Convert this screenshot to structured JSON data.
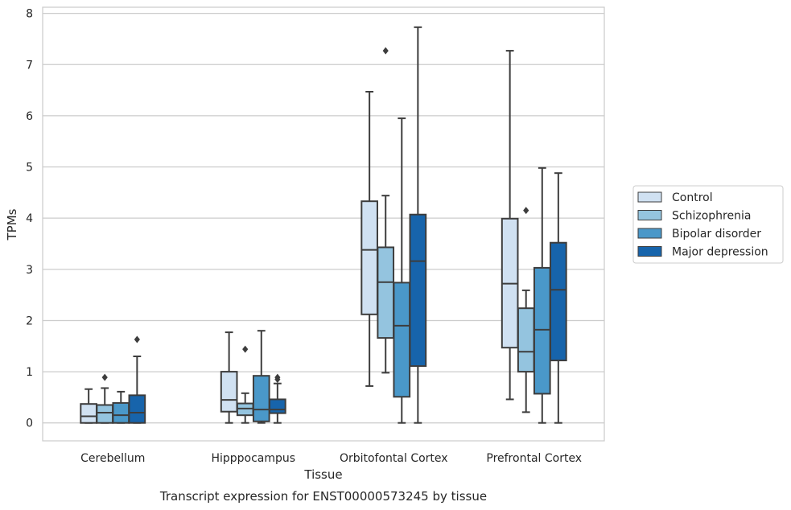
{
  "chart_data": {
    "type": "boxplot",
    "caption": "Transcript expression for ENST00000573245 by tissue",
    "xlabel": "Tissue",
    "ylabel": "TPMs",
    "ylim": [
      -0.35,
      8.12
    ],
    "yticks": [
      0,
      1,
      2,
      3,
      4,
      5,
      6,
      7,
      8
    ],
    "grid": "horizontal",
    "legend_position": "right",
    "categories": [
      "Cerebellum",
      "Hipppocampus",
      "Orbitofontal Cortex",
      "Prefrontal Cortex"
    ],
    "series": [
      {
        "name": "Control",
        "color": "#d0e1f2",
        "boxes": [
          {
            "whislo": 0,
            "q1": 0,
            "med": 0.13,
            "q3": 0.37,
            "whishi": 0.66,
            "fliers": []
          },
          {
            "whislo": 0,
            "q1": 0.22,
            "med": 0.45,
            "q3": 1.0,
            "whishi": 1.77,
            "fliers": []
          },
          {
            "whislo": 0.72,
            "q1": 2.12,
            "med": 3.38,
            "q3": 4.33,
            "whishi": 6.47,
            "fliers": []
          },
          {
            "whislo": 0.46,
            "q1": 1.47,
            "med": 2.72,
            "q3": 3.99,
            "whishi": 7.27,
            "fliers": []
          }
        ]
      },
      {
        "name": "Schizophrenia",
        "color": "#94c4df",
        "boxes": [
          {
            "whislo": 0,
            "q1": 0,
            "med": 0.2,
            "q3": 0.35,
            "whishi": 0.68,
            "fliers": [
              0.89
            ]
          },
          {
            "whislo": 0,
            "q1": 0.15,
            "med": 0.28,
            "q3": 0.38,
            "whishi": 0.58,
            "fliers": [
              1.44
            ]
          },
          {
            "whislo": 0.98,
            "q1": 1.66,
            "med": 2.75,
            "q3": 3.43,
            "whishi": 4.44,
            "fliers": [
              7.27
            ]
          },
          {
            "whislo": 0.21,
            "q1": 1.0,
            "med": 1.39,
            "q3": 2.24,
            "whishi": 2.59,
            "fliers": [
              4.15
            ]
          }
        ]
      },
      {
        "name": "Bipolar disorder",
        "color": "#4a98c9",
        "boxes": [
          {
            "whislo": 0,
            "q1": 0,
            "med": 0.15,
            "q3": 0.39,
            "whishi": 0.61,
            "fliers": []
          },
          {
            "whislo": 0,
            "q1": 0.03,
            "med": 0.26,
            "q3": 0.92,
            "whishi": 1.8,
            "fliers": []
          },
          {
            "whislo": 0,
            "q1": 0.51,
            "med": 1.9,
            "q3": 2.74,
            "whishi": 5.95,
            "fliers": []
          },
          {
            "whislo": 0,
            "q1": 0.57,
            "med": 1.82,
            "q3": 3.03,
            "whishi": 4.98,
            "fliers": []
          }
        ]
      },
      {
        "name": "Major depression",
        "color": "#1764ab",
        "boxes": [
          {
            "whislo": 0,
            "q1": 0,
            "med": 0.2,
            "q3": 0.54,
            "whishi": 1.3,
            "fliers": [
              1.63
            ]
          },
          {
            "whislo": 0,
            "q1": 0.19,
            "med": 0.26,
            "q3": 0.46,
            "whishi": 0.77,
            "fliers": [
              0.85,
              0.89
            ]
          },
          {
            "whislo": 0,
            "q1": 1.11,
            "med": 3.16,
            "q3": 4.07,
            "whishi": 7.73,
            "fliers": []
          },
          {
            "whislo": 0,
            "q1": 1.22,
            "med": 2.6,
            "q3": 3.52,
            "whishi": 4.88,
            "fliers": []
          }
        ]
      }
    ]
  }
}
